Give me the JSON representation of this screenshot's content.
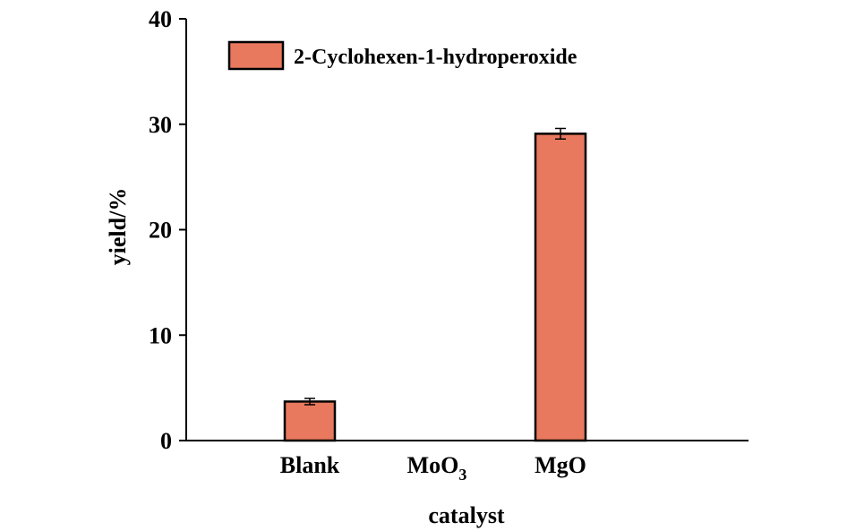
{
  "chart_data": {
    "type": "bar",
    "categories": [
      "Blank",
      "MoO3",
      "MgO"
    ],
    "category_labels": [
      {
        "main": "Blank",
        "sub": ""
      },
      {
        "main": "MoO",
        "sub": "3"
      },
      {
        "main": "MgO",
        "sub": ""
      }
    ],
    "series": [
      {
        "name": "2-Cyclohexen-1-hydroperoxide",
        "values": [
          3.7,
          0,
          29.1
        ],
        "errors": [
          0.3,
          0,
          0.5
        ],
        "color": "#E8795E"
      }
    ],
    "title": "",
    "xlabel": "catalyst",
    "ylabel": "yield/%",
    "ylim": [
      0,
      40
    ],
    "yticks": [
      0,
      10,
      20,
      30,
      40
    ],
    "grid": false,
    "legend_position": "top-left"
  }
}
